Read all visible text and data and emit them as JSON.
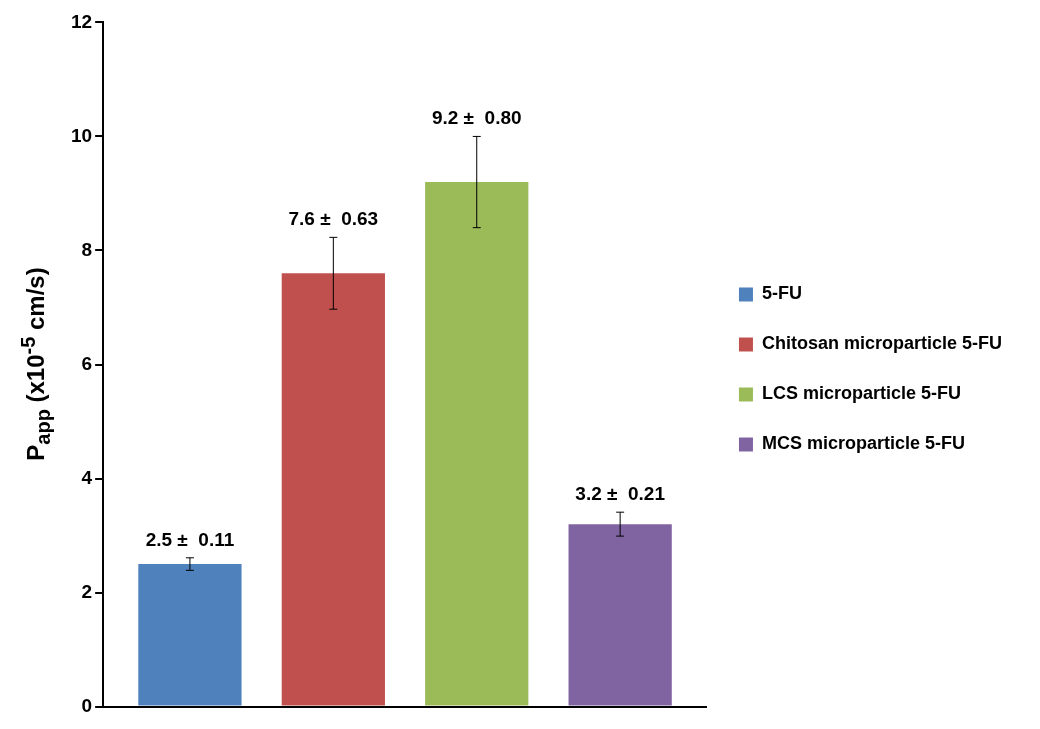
{
  "chart_data": {
    "type": "bar",
    "ylabel": "P$_{app}$ (x10$^{-5}$ cm/s)",
    "categories": [
      null
    ],
    "ylim": [
      0,
      12
    ],
    "yticks": [
      0,
      2,
      4,
      6,
      8,
      10,
      12
    ],
    "grid": false,
    "legend": "right",
    "series": [
      {
        "name": "5-FU",
        "color": "#4f81bd",
        "values": [
          2.5
        ],
        "errors": [
          0.11
        ],
        "value_labels": [
          "2.5 ±  0.11"
        ]
      },
      {
        "name": "Chitosan microparticle 5-FU",
        "color": "#c0504d",
        "values": [
          7.6
        ],
        "errors": [
          0.63
        ],
        "value_labels": [
          "7.6 ±  0.63"
        ]
      },
      {
        "name": "LCS microparticle 5-FU",
        "color": "#9bbb59",
        "values": [
          9.2
        ],
        "errors": [
          0.8
        ],
        "value_labels": [
          "9.2 ±  0.80"
        ]
      },
      {
        "name": "MCS microparticle 5-FU",
        "color": "#8064a2",
        "values": [
          3.2
        ],
        "errors": [
          0.21
        ],
        "value_labels": [
          "3.2 ±  0.21"
        ]
      }
    ]
  }
}
